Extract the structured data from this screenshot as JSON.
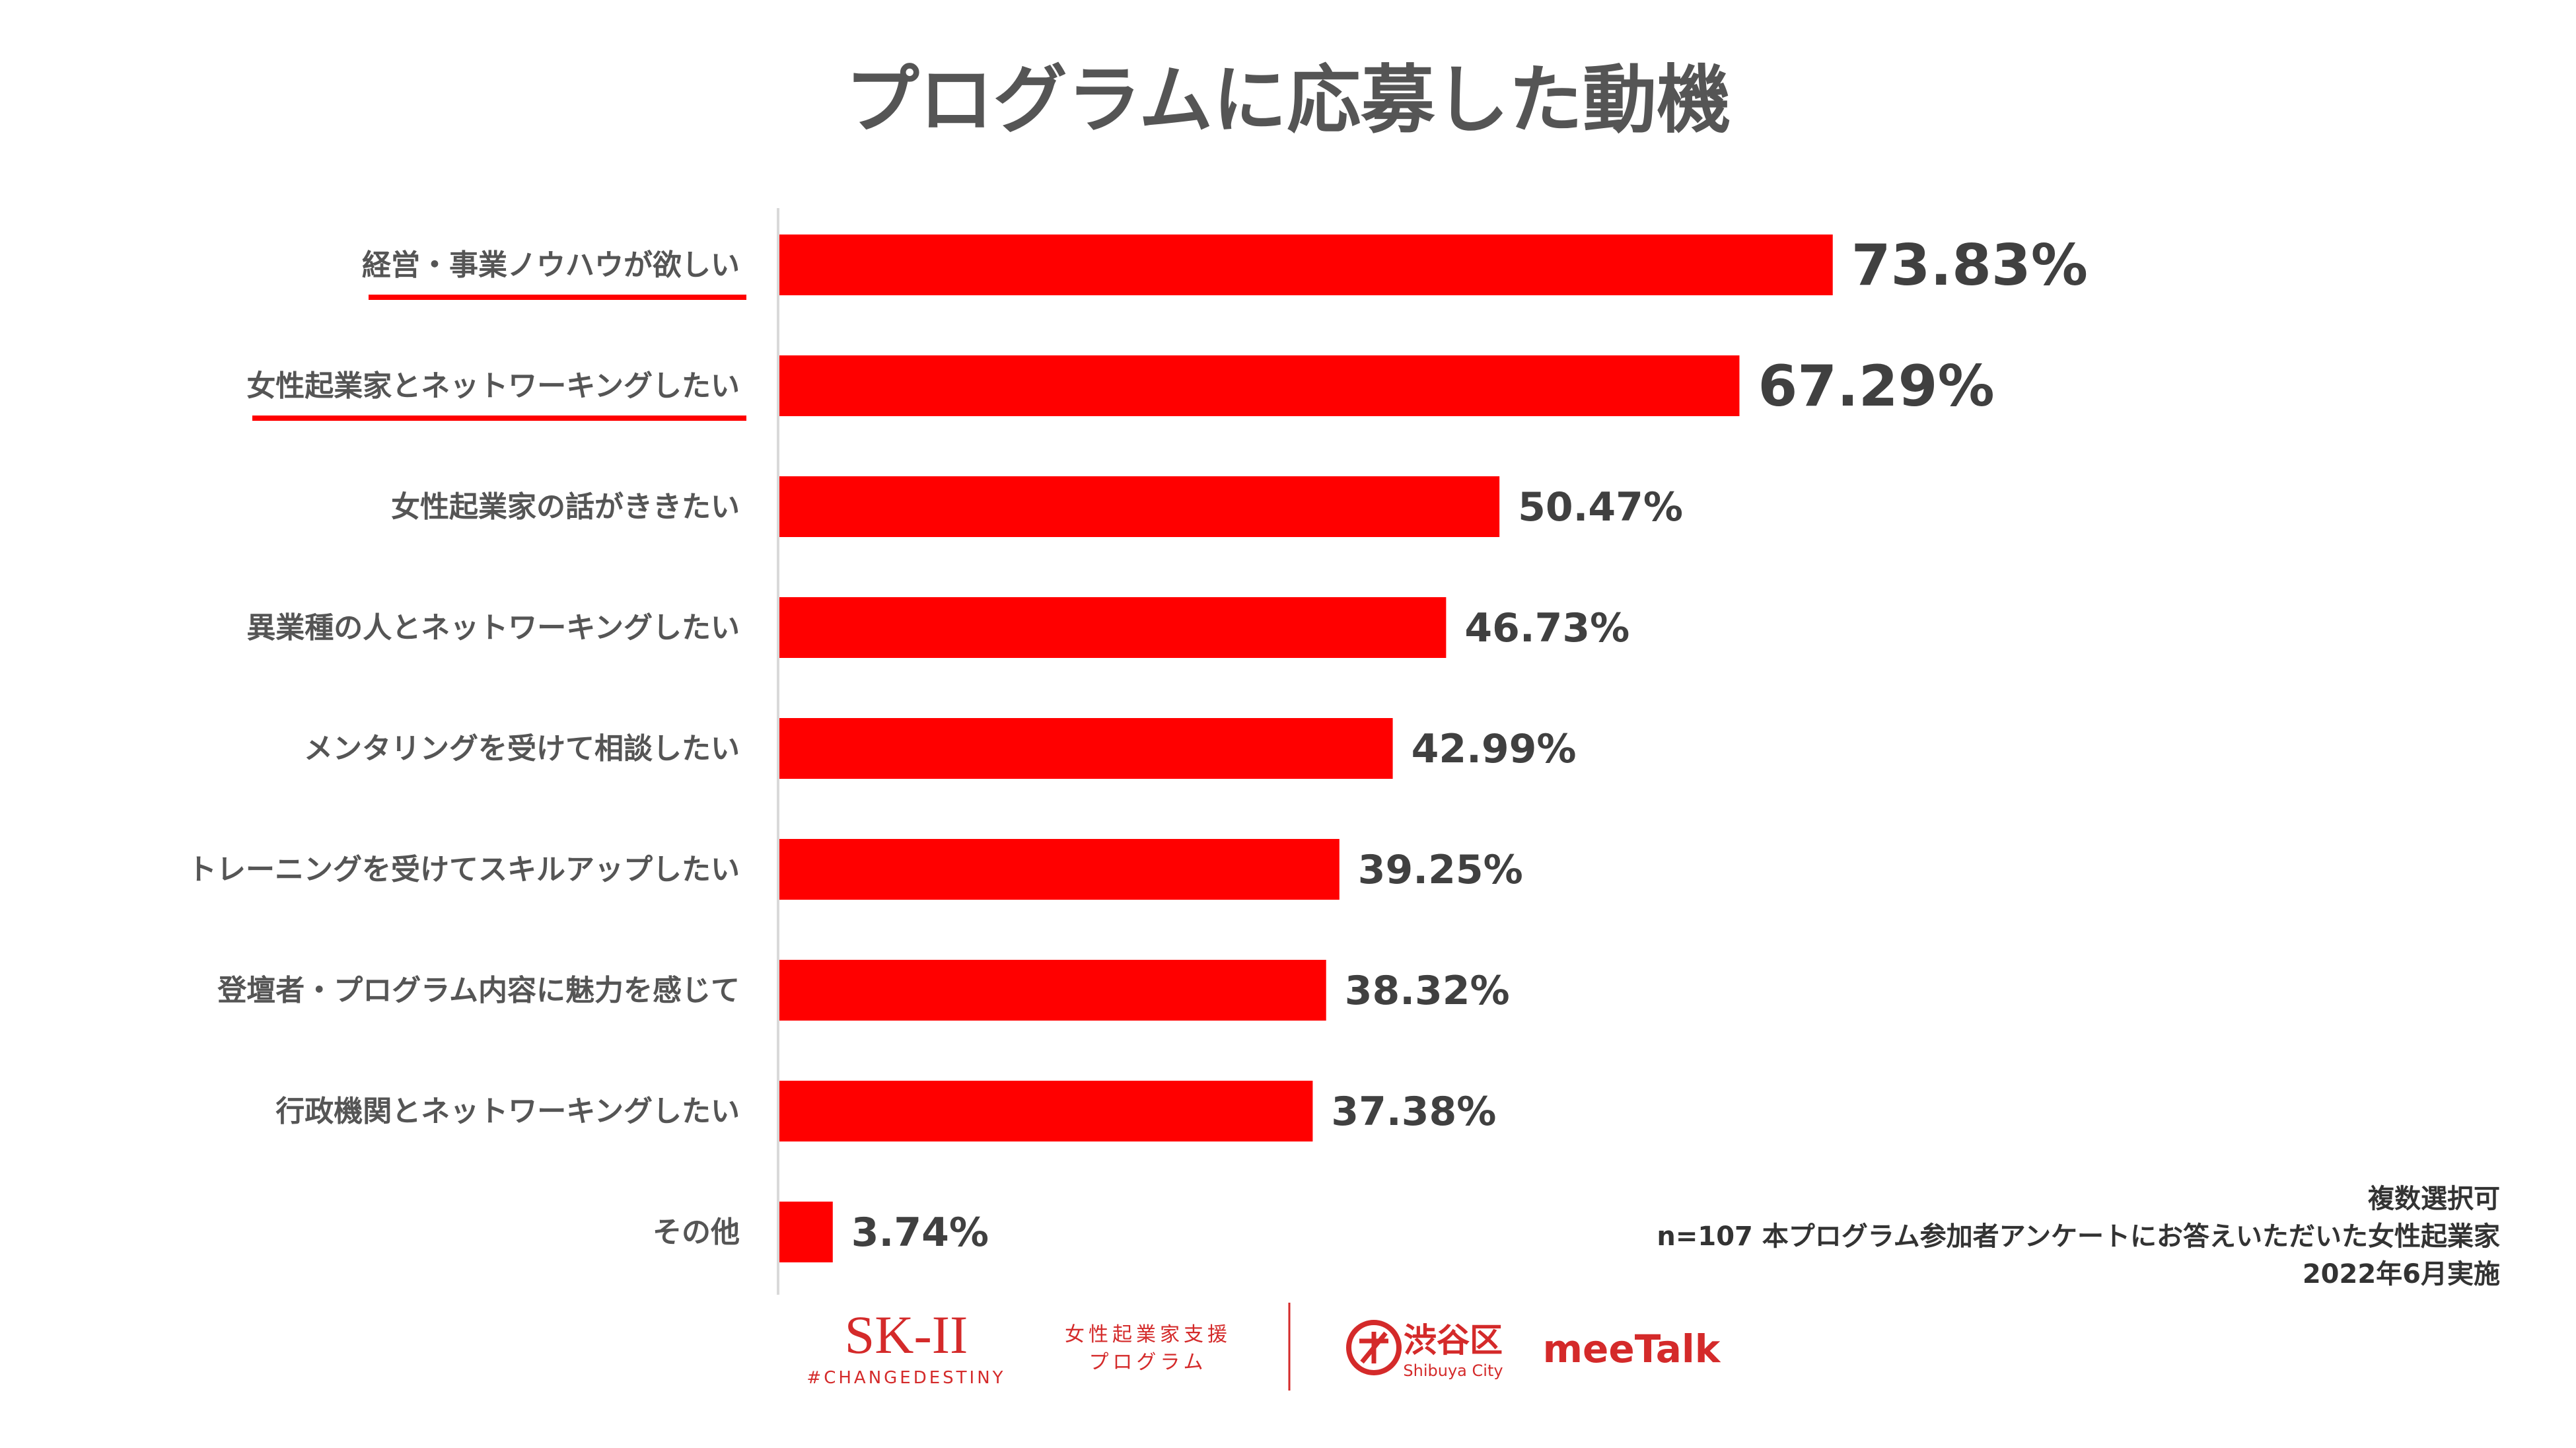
{
  "chart_data": {
    "type": "bar",
    "orientation": "horizontal",
    "title": "プログラムに応募した動機",
    "categories": [
      "経営・事業ノウハウが欲しい",
      "女性起業家とネットワーキングしたい",
      "女性起業家の話がききたい",
      "異業種の人とネットワーキングしたい",
      "メンタリングを受けて相談したい",
      "トレーニングを受けてスキルアップしたい",
      "登壇者・プログラム内容に魅力を感じて",
      "行政機関とネットワーキングしたい",
      "その他"
    ],
    "values": [
      73.83,
      67.29,
      50.47,
      46.73,
      42.99,
      39.25,
      38.32,
      37.38,
      3.74
    ],
    "value_labels": [
      "73.83%",
      "67.29%",
      "50.47%",
      "46.73%",
      "42.99%",
      "39.25%",
      "38.32%",
      "37.38%",
      "3.74%"
    ],
    "highlighted_categories": [
      0,
      1
    ],
    "xlim": [
      0,
      100
    ],
    "unit": "%",
    "bar_color": "#ff0000",
    "grid": false,
    "legend": "none"
  },
  "notes": {
    "line1": "複数選択可",
    "line2": "n=107 本プログラム参加者アンケートにお答えいただいた女性起業家",
    "line3": "2022年6月実施"
  },
  "footer": {
    "skii_logo": "SK-II",
    "skii_tagline": "#CHANGEDESTINY",
    "program_line1": "女性起業家支援",
    "program_line2": "プログラム",
    "shibuya_name": "渋谷区",
    "shibuya_sub": "Shibuya City",
    "meetalk": "meeTalk"
  },
  "colors": {
    "accent": "#ff0000",
    "text": "#555555",
    "logo_red": "#d42a2a"
  }
}
